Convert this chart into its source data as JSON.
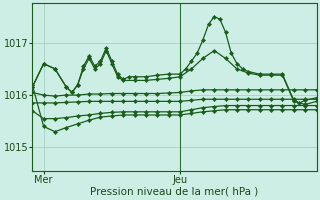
{
  "bg_color": "#cceee4",
  "grid_color": "#99ccbb",
  "line_color": "#1a5c1a",
  "marker_color": "#1a5c1a",
  "xlabel": "Pression niveau de la mer( hPa )",
  "yticks": [
    1015,
    1016,
    1017
  ],
  "ylim": [
    1014.55,
    1017.75
  ],
  "xlim": [
    0,
    50
  ],
  "xtick_positions": [
    2,
    26
  ],
  "xtick_labels": [
    "Mer",
    "Jeu"
  ],
  "vline_x": 26,
  "lines": [
    {
      "x": [
        0,
        2,
        4,
        6,
        7,
        8,
        9,
        10,
        11,
        12,
        13,
        14,
        15,
        16,
        17,
        18,
        20,
        22,
        24,
        26,
        27,
        28,
        29,
        30,
        31,
        32,
        33,
        34,
        35,
        36,
        37,
        38,
        40,
        42,
        44,
        46,
        47,
        48,
        50
      ],
      "y": [
        1016.15,
        1016.6,
        1016.5,
        1016.15,
        1016.05,
        1016.2,
        1016.55,
        1016.75,
        1016.55,
        1016.65,
        1016.9,
        1016.65,
        1016.4,
        1016.3,
        1016.35,
        1016.35,
        1016.35,
        1016.38,
        1016.4,
        1016.4,
        1016.5,
        1016.65,
        1016.8,
        1017.05,
        1017.35,
        1017.5,
        1017.45,
        1017.2,
        1016.8,
        1016.6,
        1016.5,
        1016.45,
        1016.4,
        1016.4,
        1016.4,
        1015.9,
        1015.85,
        1015.9,
        1015.95
      ]
    },
    {
      "x": [
        0,
        2,
        4,
        6,
        7,
        8,
        9,
        10,
        11,
        12,
        13,
        14,
        15,
        16,
        18,
        20,
        22,
        24,
        26,
        28,
        30,
        32,
        34,
        36,
        38,
        40,
        42,
        44,
        46,
        48,
        50
      ],
      "y": [
        1016.15,
        1016.6,
        1016.5,
        1016.15,
        1016.05,
        1016.2,
        1016.5,
        1016.7,
        1016.5,
        1016.6,
        1016.85,
        1016.6,
        1016.35,
        1016.28,
        1016.28,
        1016.28,
        1016.3,
        1016.32,
        1016.35,
        1016.5,
        1016.7,
        1016.85,
        1016.7,
        1016.5,
        1016.42,
        1016.38,
        1016.38,
        1016.38,
        1015.88,
        1015.82,
        1015.88
      ]
    },
    {
      "x": [
        0,
        2,
        4,
        6,
        8,
        10,
        12,
        14,
        16,
        18,
        20,
        22,
        24,
        26,
        28,
        30,
        32,
        34,
        36,
        38,
        40,
        42,
        44,
        46,
        48,
        50
      ],
      "y": [
        1016.05,
        1016.0,
        1015.98,
        1016.0,
        1016.0,
        1016.02,
        1016.02,
        1016.03,
        1016.03,
        1016.03,
        1016.03,
        1016.03,
        1016.04,
        1016.05,
        1016.08,
        1016.1,
        1016.1,
        1016.1,
        1016.1,
        1016.1,
        1016.1,
        1016.1,
        1016.1,
        1016.1,
        1016.1,
        1016.1
      ]
    },
    {
      "x": [
        0,
        2,
        4,
        6,
        8,
        10,
        12,
        14,
        16,
        18,
        20,
        22,
        24,
        26,
        28,
        30,
        32,
        34,
        36,
        38,
        40,
        42,
        44,
        46,
        48,
        50
      ],
      "y": [
        1015.85,
        1015.85,
        1015.85,
        1015.86,
        1015.87,
        1015.88,
        1015.88,
        1015.88,
        1015.88,
        1015.88,
        1015.88,
        1015.88,
        1015.88,
        1015.88,
        1015.9,
        1015.92,
        1015.92,
        1015.92,
        1015.92,
        1015.92,
        1015.92,
        1015.92,
        1015.92,
        1015.92,
        1015.92,
        1015.92
      ]
    },
    {
      "x": [
        0,
        2,
        4,
        6,
        8,
        10,
        12,
        14,
        16,
        18,
        20,
        22,
        24,
        26,
        28,
        30,
        32,
        34,
        36,
        38,
        40,
        42,
        44,
        46,
        48,
        50
      ],
      "y": [
        1015.7,
        1015.55,
        1015.55,
        1015.57,
        1015.6,
        1015.62,
        1015.65,
        1015.67,
        1015.68,
        1015.68,
        1015.68,
        1015.68,
        1015.68,
        1015.68,
        1015.72,
        1015.76,
        1015.78,
        1015.8,
        1015.8,
        1015.8,
        1015.8,
        1015.8,
        1015.8,
        1015.8,
        1015.8,
        1015.8
      ]
    },
    {
      "x": [
        0,
        2,
        4,
        6,
        8,
        10,
        12,
        14,
        16,
        18,
        20,
        22,
        24,
        26,
        28,
        30,
        32,
        34,
        36,
        38,
        40,
        42,
        44,
        46,
        48,
        50
      ],
      "y": [
        1016.2,
        1015.4,
        1015.3,
        1015.38,
        1015.45,
        1015.52,
        1015.58,
        1015.6,
        1015.62,
        1015.62,
        1015.62,
        1015.62,
        1015.62,
        1015.62,
        1015.65,
        1015.68,
        1015.7,
        1015.72,
        1015.72,
        1015.72,
        1015.72,
        1015.72,
        1015.72,
        1015.72,
        1015.72,
        1015.72
      ]
    }
  ]
}
